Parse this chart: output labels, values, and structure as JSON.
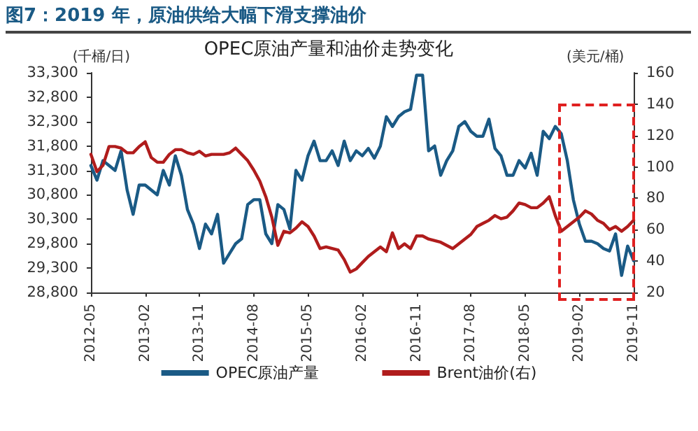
{
  "chart_data": {
    "type": "line",
    "title": "图7：2019 年，原油供给大幅下滑支撑油价",
    "subtitle": "OPEC原油产量和油价走势变化",
    "ylabel": "(千桶/日)",
    "y2label": "(美元/桶)",
    "categories": [
      "2012-05",
      null,
      null,
      null,
      null,
      null,
      null,
      null,
      null,
      "2013-02",
      null,
      null,
      null,
      null,
      null,
      null,
      null,
      null,
      "2013-11",
      null,
      null,
      null,
      null,
      null,
      null,
      null,
      null,
      "2014-08",
      null,
      null,
      null,
      null,
      null,
      null,
      null,
      null,
      "2015-05",
      null,
      null,
      null,
      null,
      null,
      null,
      null,
      null,
      "2016-02",
      null,
      null,
      null,
      null,
      null,
      null,
      null,
      null,
      "2016-11",
      null,
      null,
      null,
      null,
      null,
      null,
      null,
      null,
      "2017-08",
      null,
      null,
      null,
      null,
      null,
      null,
      null,
      null,
      "2018-05",
      null,
      null,
      null,
      null,
      null,
      null,
      null,
      null,
      "2019-02",
      null,
      null,
      null,
      null,
      null,
      null,
      null,
      null,
      "2019-11"
    ],
    "series": [
      {
        "name": "OPEC原油产量",
        "color": "#1a5a85",
        "values": [
          31400,
          31100,
          31500,
          31400,
          31300,
          31700,
          30900,
          30400,
          31000,
          31000,
          30900,
          30800,
          31300,
          31000,
          31600,
          31200,
          30500,
          30200,
          29700,
          30200,
          30000,
          30400,
          29400,
          29600,
          29800,
          29900,
          30600,
          30700,
          30700,
          30000,
          29800,
          30600,
          30500,
          30100,
          31300,
          31100,
          31600,
          31900,
          31500,
          31500,
          31700,
          31400,
          31900,
          31500,
          31700,
          31600,
          31750,
          31550,
          31800,
          32400,
          32200,
          32400,
          32500,
          32550,
          33250,
          33250,
          31700,
          31800,
          31200,
          31500,
          31700,
          32200,
          32300,
          32100,
          32000,
          32000,
          32350,
          31750,
          31600,
          31200,
          31200,
          31500,
          31350,
          31650,
          31200,
          32100,
          31950,
          32200,
          32050,
          31500,
          30700,
          30200,
          29850,
          29850,
          29800,
          29700,
          29650,
          30000,
          29150,
          29750,
          29450
        ]
      },
      {
        "name": "Brent油价(右)",
        "color": "#b01c1c",
        "axis": "y2",
        "values": [
          108,
          97,
          101,
          113,
          113,
          112,
          109,
          109,
          113,
          116,
          106,
          103,
          103,
          108,
          111,
          111,
          109,
          108,
          110,
          107,
          108,
          108,
          108,
          109,
          112,
          108,
          104,
          98,
          91,
          81,
          68,
          50,
          59,
          58,
          61,
          65,
          62,
          56,
          48,
          49,
          48,
          47,
          41,
          33,
          35,
          39,
          43,
          46,
          49,
          46,
          58,
          48,
          51,
          48,
          56,
          56,
          54,
          53,
          52,
          50,
          48,
          51,
          54,
          57,
          62,
          64,
          66,
          69,
          67,
          68,
          72,
          77,
          76,
          74,
          74,
          77,
          81,
          69,
          59,
          62,
          65,
          68,
          72,
          70,
          66,
          64,
          60,
          62,
          59,
          62,
          66
        ]
      }
    ],
    "ylim": [
      28800,
      33300
    ],
    "yticks": [
      {
        "value": 28800,
        "label": "28,800"
      },
      {
        "value": 29300,
        "label": "29,300"
      },
      {
        "value": 29800,
        "label": "29,800"
      },
      {
        "value": 30300,
        "label": "30,300"
      },
      {
        "value": 30800,
        "label": "30,800"
      },
      {
        "value": 31300,
        "label": "31,300"
      },
      {
        "value": 31800,
        "label": "31,800"
      },
      {
        "value": 32300,
        "label": "32,300"
      },
      {
        "value": 32800,
        "label": "32,800"
      },
      {
        "value": 33300,
        "label": "33,300"
      }
    ],
    "y2lim": [
      20,
      160
    ],
    "y2ticks": [
      20,
      40,
      60,
      80,
      100,
      120,
      140,
      160
    ],
    "grid": false,
    "legend": "bottom",
    "marker": "none",
    "line_style": "solid"
  }
}
